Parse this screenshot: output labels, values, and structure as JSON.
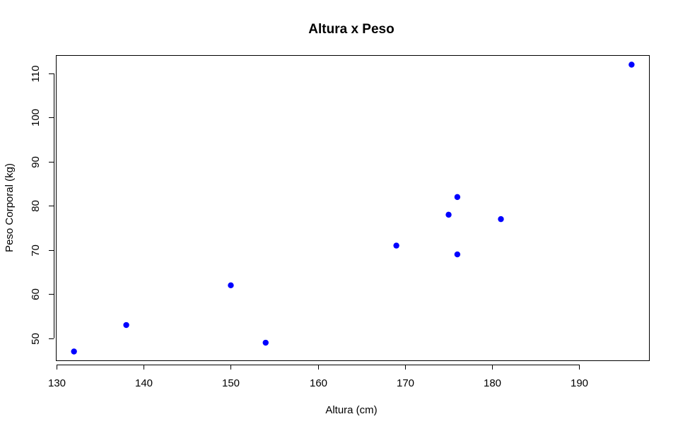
{
  "chart_data": {
    "type": "scatter",
    "title": "Altura x Peso",
    "xlabel": "Altura (cm)",
    "ylabel": "Peso Corporal (kg)",
    "xlim": [
      130,
      198
    ],
    "ylim": [
      45,
      114
    ],
    "xticks": [
      130,
      140,
      150,
      160,
      170,
      180,
      190
    ],
    "yticks": [
      50,
      60,
      70,
      80,
      90,
      100,
      110
    ],
    "grid": false,
    "marker_color": "#0000ff",
    "series": [
      {
        "points": [
          {
            "x": 132,
            "y": 47
          },
          {
            "x": 138,
            "y": 53
          },
          {
            "x": 150,
            "y": 62
          },
          {
            "x": 154,
            "y": 49
          },
          {
            "x": 169,
            "y": 71
          },
          {
            "x": 175,
            "y": 78
          },
          {
            "x": 176,
            "y": 82
          },
          {
            "x": 176,
            "y": 69
          },
          {
            "x": 181,
            "y": 77
          },
          {
            "x": 196,
            "y": 112
          }
        ]
      }
    ]
  }
}
